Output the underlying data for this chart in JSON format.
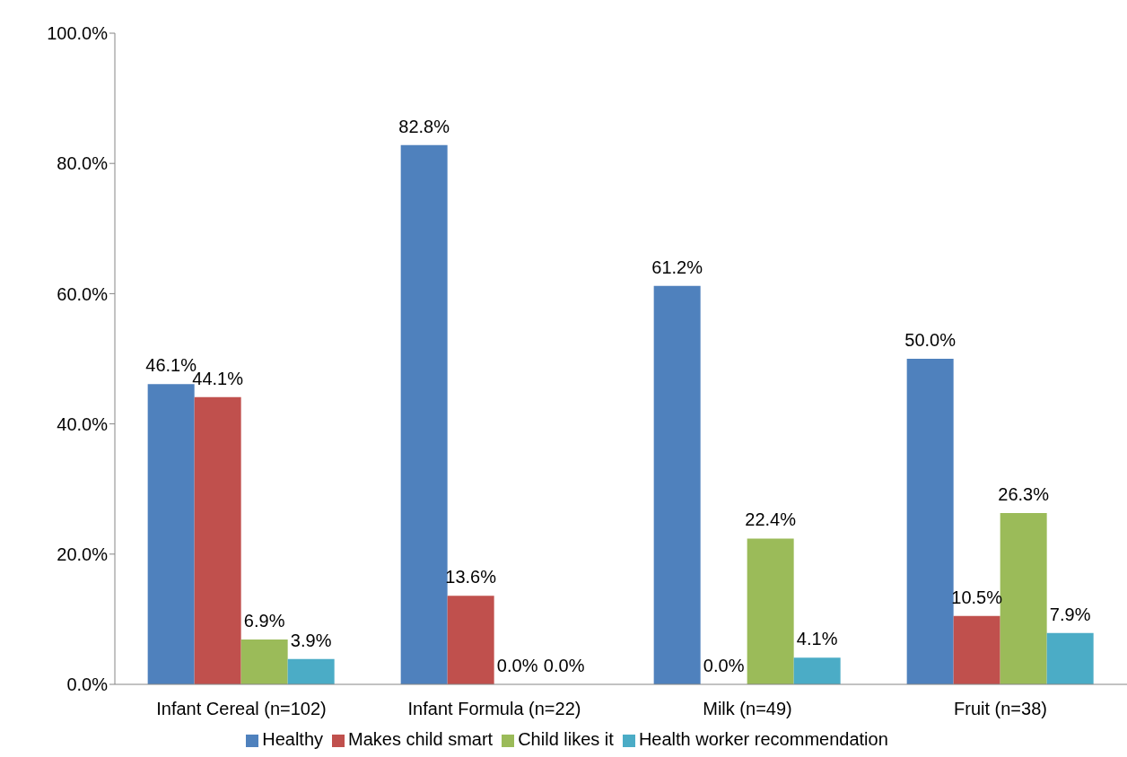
{
  "chart_data": {
    "type": "bar",
    "categories": [
      "Infant Cereal (n=102)",
      "Infant Formula (n=22)",
      "Milk (n=49)",
      "Fruit (n=38)"
    ],
    "series": [
      {
        "name": "Healthy",
        "color": "#4f81bd",
        "values": [
          46.1,
          82.8,
          61.2,
          50.0
        ],
        "value_labels": [
          "46.1%",
          "82.8%",
          "61.2%",
          "50.0%"
        ]
      },
      {
        "name": "Makes child smart",
        "color": "#c0504d",
        "values": [
          44.1,
          13.6,
          0.0,
          10.5
        ],
        "value_labels": [
          "44.1%",
          "13.6%",
          "0.0%",
          "10.5%"
        ]
      },
      {
        "name": "Child likes it",
        "color": "#9bbb59",
        "values": [
          6.9,
          0.0,
          22.4,
          26.3
        ],
        "value_labels": [
          "6.9%",
          "0.0%",
          "22.4%",
          "26.3%"
        ]
      },
      {
        "name": "Health worker recommendation",
        "color": "#4bacc6",
        "values": [
          3.9,
          0.0,
          4.1,
          7.9
        ],
        "value_labels": [
          "3.9%",
          "0.0%",
          "4.1%",
          "7.9%"
        ]
      }
    ],
    "ylim": [
      0,
      100
    ],
    "yticks": [
      {
        "value": 0,
        "label": "0.0%"
      },
      {
        "value": 20,
        "label": "20.0%"
      },
      {
        "value": 40,
        "label": "40.0%"
      },
      {
        "value": 60,
        "label": "60.0%"
      },
      {
        "value": 80,
        "label": "80.0%"
      },
      {
        "value": 100,
        "label": "100.0%"
      }
    ],
    "grid": false,
    "legend": "bottom"
  }
}
